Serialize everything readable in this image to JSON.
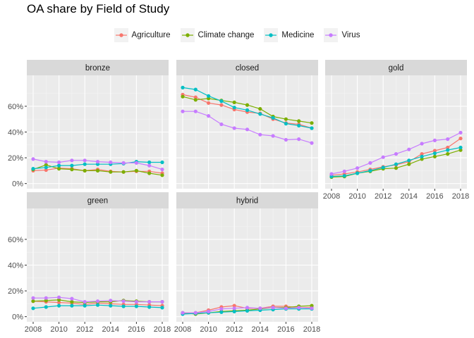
{
  "chart_data": {
    "type": "line",
    "title": "OA share by Field of Study",
    "xlabel": "",
    "ylabel": "",
    "facet_by": "oa_status",
    "ylim": [
      0,
      0.8
    ],
    "xlim": [
      2008,
      2018
    ],
    "x": [
      2008,
      2009,
      2010,
      2011,
      2012,
      2013,
      2014,
      2015,
      2016,
      2017,
      2018
    ],
    "x_ticks": [
      "2008",
      "2010",
      "2012",
      "2014",
      "2016",
      "2018"
    ],
    "y_ticks": [
      {
        "value": 0.0,
        "label": "0%"
      },
      {
        "value": 0.2,
        "label": "20%"
      },
      {
        "value": 0.4,
        "label": "40%"
      },
      {
        "value": 0.6,
        "label": "60%"
      }
    ],
    "legend_position": "top",
    "grid": true,
    "series_meta": [
      {
        "name": "Agriculture",
        "color": "#F8766D"
      },
      {
        "name": "Climate change",
        "color": "#7CAE00"
      },
      {
        "name": "Medicine",
        "color": "#00BFC4"
      },
      {
        "name": "Virus",
        "color": "#C77CFF"
      }
    ],
    "facets": [
      {
        "label": "bronze",
        "series": [
          {
            "name": "Agriculture",
            "values": [
              0.1,
              0.105,
              0.12,
              0.115,
              0.1,
              0.11,
              0.095,
              0.09,
              0.095,
              0.095,
              0.08
            ]
          },
          {
            "name": "Climate change",
            "values": [
              0.11,
              0.145,
              0.115,
              0.11,
              0.1,
              0.1,
              0.09,
              0.09,
              0.1,
              0.08,
              0.065
            ]
          },
          {
            "name": "Medicine",
            "values": [
              0.115,
              0.125,
              0.14,
              0.14,
              0.15,
              0.15,
              0.15,
              0.155,
              0.17,
              0.165,
              0.165
            ]
          },
          {
            "name": "Virus",
            "values": [
              0.19,
              0.17,
              0.165,
              0.18,
              0.18,
              0.17,
              0.165,
              0.16,
              0.16,
              0.14,
              0.11
            ]
          }
        ]
      },
      {
        "label": "closed",
        "series": [
          {
            "name": "Agriculture",
            "values": [
              0.69,
              0.67,
              0.625,
              0.61,
              0.575,
              0.555,
              0.545,
              0.5,
              0.47,
              0.46,
              0.43
            ]
          },
          {
            "name": "Climate change",
            "values": [
              0.675,
              0.65,
              0.66,
              0.645,
              0.63,
              0.61,
              0.58,
              0.52,
              0.5,
              0.485,
              0.47
            ]
          },
          {
            "name": "Medicine",
            "values": [
              0.745,
              0.73,
              0.68,
              0.64,
              0.59,
              0.57,
              0.54,
              0.51,
              0.465,
              0.45,
              0.43
            ]
          },
          {
            "name": "Virus",
            "values": [
              0.56,
              0.56,
              0.525,
              0.46,
              0.43,
              0.42,
              0.38,
              0.37,
              0.34,
              0.345,
              0.315
            ]
          }
        ]
      },
      {
        "label": "gold",
        "series": [
          {
            "name": "Agriculture",
            "values": [
              0.065,
              0.075,
              0.09,
              0.11,
              0.13,
              0.145,
              0.17,
              0.23,
              0.255,
              0.28,
              0.35
            ]
          },
          {
            "name": "Climate change",
            "values": [
              0.05,
              0.055,
              0.08,
              0.095,
              0.115,
              0.12,
              0.15,
              0.19,
              0.21,
              0.23,
              0.26
            ]
          },
          {
            "name": "Medicine",
            "values": [
              0.055,
              0.06,
              0.08,
              0.1,
              0.125,
              0.15,
              0.18,
              0.21,
              0.235,
              0.26,
              0.28
            ]
          },
          {
            "name": "Virus",
            "values": [
              0.075,
              0.095,
              0.12,
              0.16,
              0.205,
              0.23,
              0.265,
              0.31,
              0.335,
              0.345,
              0.395
            ]
          }
        ]
      },
      {
        "label": "green",
        "series": [
          {
            "name": "Agriculture",
            "values": [
              0.12,
              0.115,
              0.11,
              0.105,
              0.095,
              0.105,
              0.1,
              0.095,
              0.095,
              0.09,
              0.085
            ]
          },
          {
            "name": "Climate change",
            "values": [
              0.12,
              0.125,
              0.13,
              0.115,
              0.11,
              0.115,
              0.115,
              0.125,
              0.12,
              0.115,
              0.115
            ]
          },
          {
            "name": "Medicine",
            "values": [
              0.065,
              0.075,
              0.085,
              0.085,
              0.085,
              0.09,
              0.085,
              0.08,
              0.08,
              0.075,
              0.07
            ]
          },
          {
            "name": "Virus",
            "values": [
              0.145,
              0.145,
              0.15,
              0.14,
              0.115,
              0.12,
              0.125,
              0.12,
              0.115,
              0.115,
              0.115
            ]
          }
        ]
      },
      {
        "label": "hybrid",
        "series": [
          {
            "name": "Agriculture",
            "values": [
              0.025,
              0.03,
              0.05,
              0.075,
              0.085,
              0.065,
              0.065,
              0.08,
              0.08,
              0.07,
              0.07
            ]
          },
          {
            "name": "Climate change",
            "values": [
              0.03,
              0.02,
              0.03,
              0.04,
              0.045,
              0.05,
              0.06,
              0.07,
              0.07,
              0.08,
              0.085
            ]
          },
          {
            "name": "Medicine",
            "values": [
              0.02,
              0.025,
              0.03,
              0.035,
              0.04,
              0.045,
              0.05,
              0.055,
              0.06,
              0.06,
              0.06
            ]
          },
          {
            "name": "Virus",
            "values": [
              0.03,
              0.03,
              0.04,
              0.06,
              0.065,
              0.07,
              0.065,
              0.07,
              0.065,
              0.07,
              0.065
            ]
          }
        ]
      }
    ]
  }
}
